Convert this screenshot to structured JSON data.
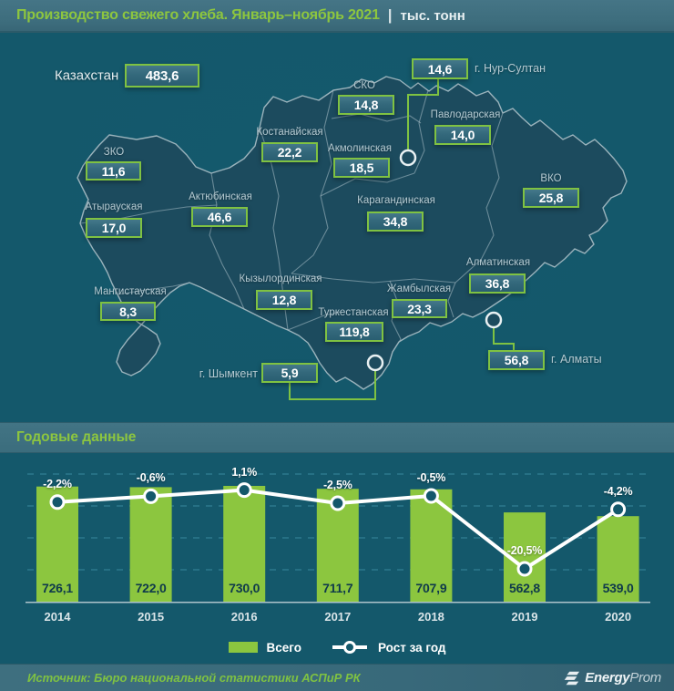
{
  "title_bar": {
    "title": "Производство свежего хлеба. Январь–ноябрь 2021",
    "separator": "|",
    "units": "тыс. тонн"
  },
  "map": {
    "country": {
      "name": "Казахстан",
      "value": "483,6"
    },
    "regions": [
      {
        "id": "sko",
        "name": "СКО",
        "value": "14,8"
      },
      {
        "id": "nur_sultan",
        "name": "г. Нур-Султан",
        "value": "14,6",
        "city": true
      },
      {
        "id": "pavlodarskaya",
        "name": "Павлодарская",
        "value": "14,0"
      },
      {
        "id": "kostanayskaya",
        "name": "Костанайская",
        "value": "22,2"
      },
      {
        "id": "akmolinskaya",
        "name": "Акмолинская",
        "value": "18,5"
      },
      {
        "id": "zko",
        "name": "ЗКО",
        "value": "11,6"
      },
      {
        "id": "vko",
        "name": "ВКО",
        "value": "25,8"
      },
      {
        "id": "aktyubinskaya",
        "name": "Актюбинская",
        "value": "46,6"
      },
      {
        "id": "atyrauskaya",
        "name": "Атырауская",
        "value": "17,0"
      },
      {
        "id": "karagandinskaya",
        "name": "Карагандинская",
        "value": "34,8"
      },
      {
        "id": "mangistauskaya",
        "name": "Мангистауская",
        "value": "8,3"
      },
      {
        "id": "kyzylordinskaya",
        "name": "Кызылординская",
        "value": "12,8"
      },
      {
        "id": "turkestanskaya",
        "name": "Туркестанская",
        "value": "119,8"
      },
      {
        "id": "zhambylskaya",
        "name": "Жамбылская",
        "value": "23,3"
      },
      {
        "id": "almatinskaya",
        "name": "Алматинская",
        "value": "36,8"
      },
      {
        "id": "almaty",
        "name": "г. Алматы",
        "value": "56,8",
        "city": true
      },
      {
        "id": "shymkent",
        "name": "г. Шымкент",
        "value": "5,9",
        "city": true
      }
    ]
  },
  "annual": {
    "header": "Годовые данные"
  },
  "chart_data": {
    "type": "bar+line",
    "title": "Годовые данные",
    "categories": [
      "2014",
      "2015",
      "2016",
      "2017",
      "2018",
      "2019",
      "2020"
    ],
    "series": [
      {
        "name": "Всего",
        "type": "bar",
        "values": [
          726.1,
          722.0,
          730.0,
          711.7,
          707.9,
          562.8,
          539.0
        ],
        "labels": [
          "726,1",
          "722,0",
          "730,0",
          "711,7",
          "707,9",
          "562,8",
          "539,0"
        ]
      },
      {
        "name": "Рост за год",
        "type": "line",
        "values": [
          -2.2,
          -0.6,
          1.1,
          -2.5,
          -0.5,
          -20.5,
          -4.2
        ],
        "labels": [
          "-2,2%",
          "-0,6%",
          "1,1%",
          "-2,5%",
          "-0,5%",
          "-20,5%",
          "-4,2%"
        ]
      }
    ],
    "ylim": [
      0,
      760
    ],
    "grid": "dashed horizontal",
    "legend_position": "bottom"
  },
  "footer": {
    "source": "Источник: Бюро национальной статистики АСПиР РК",
    "logo": {
      "bold": "Energy",
      "light": "Prom"
    }
  },
  "colors": {
    "accent_green": "#8DC63F",
    "box_border": "#7FC242",
    "background": "#14586B",
    "land": "#1D4B5E",
    "bar": "#8CC63F",
    "band": "#3E7182"
  }
}
